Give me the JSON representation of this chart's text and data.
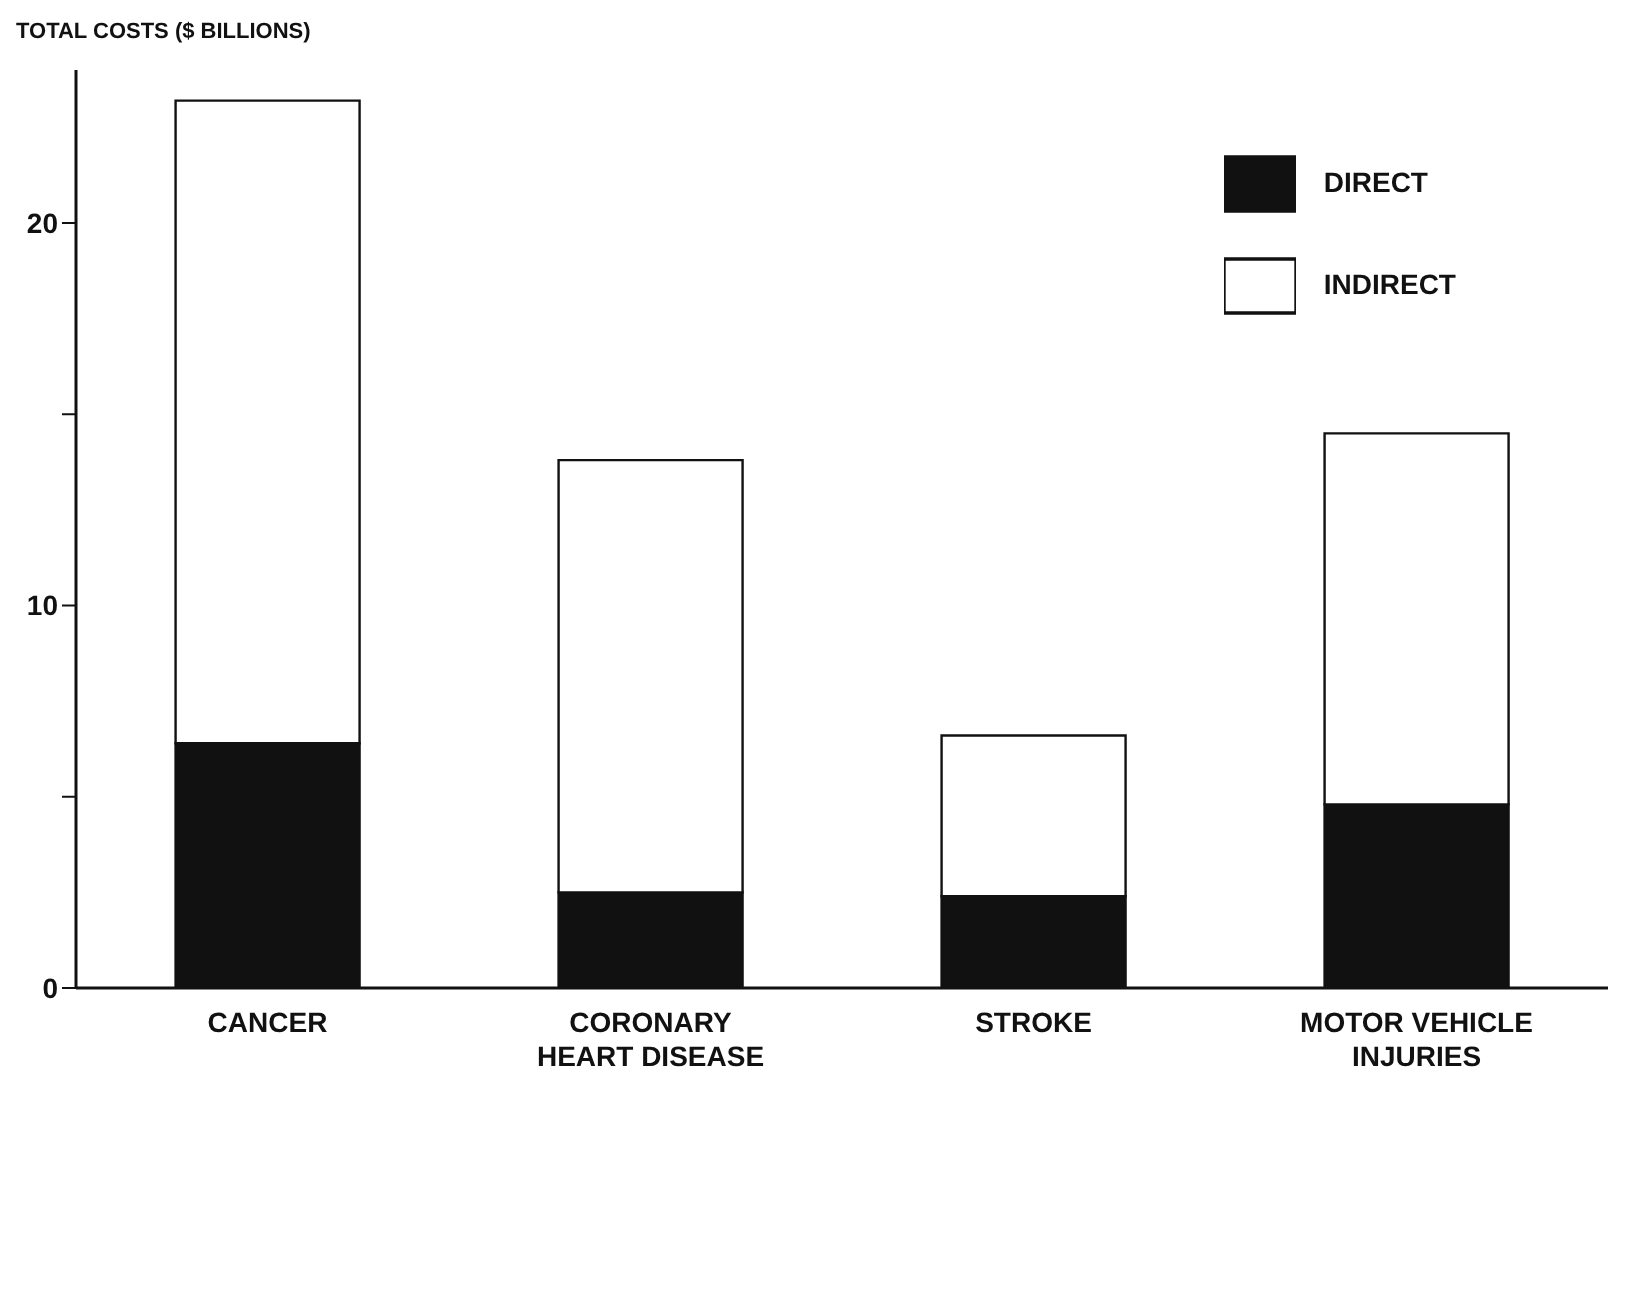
{
  "chart_data": {
    "type": "bar",
    "stacked": true,
    "ylabel": "TOTAL COSTS ($ BILLIONS)",
    "categories": [
      "CANCER",
      "CORONARY HEART DISEASE",
      "STROKE",
      "MOTOR VEHICLE INJURIES"
    ],
    "series": [
      {
        "name": "DIRECT",
        "color": "#111111",
        "values": [
          6.4,
          2.5,
          2.4,
          4.8
        ]
      },
      {
        "name": "INDIRECT",
        "color": "#ffffff",
        "values": [
          16.8,
          11.3,
          4.2,
          9.7
        ]
      }
    ],
    "ylim": [
      0,
      24
    ],
    "yticks": [
      0,
      {
        "value": 5,
        "label": null
      },
      10,
      {
        "value": 15,
        "label": null
      },
      20
    ],
    "legend": "top right",
    "grid": false
  }
}
